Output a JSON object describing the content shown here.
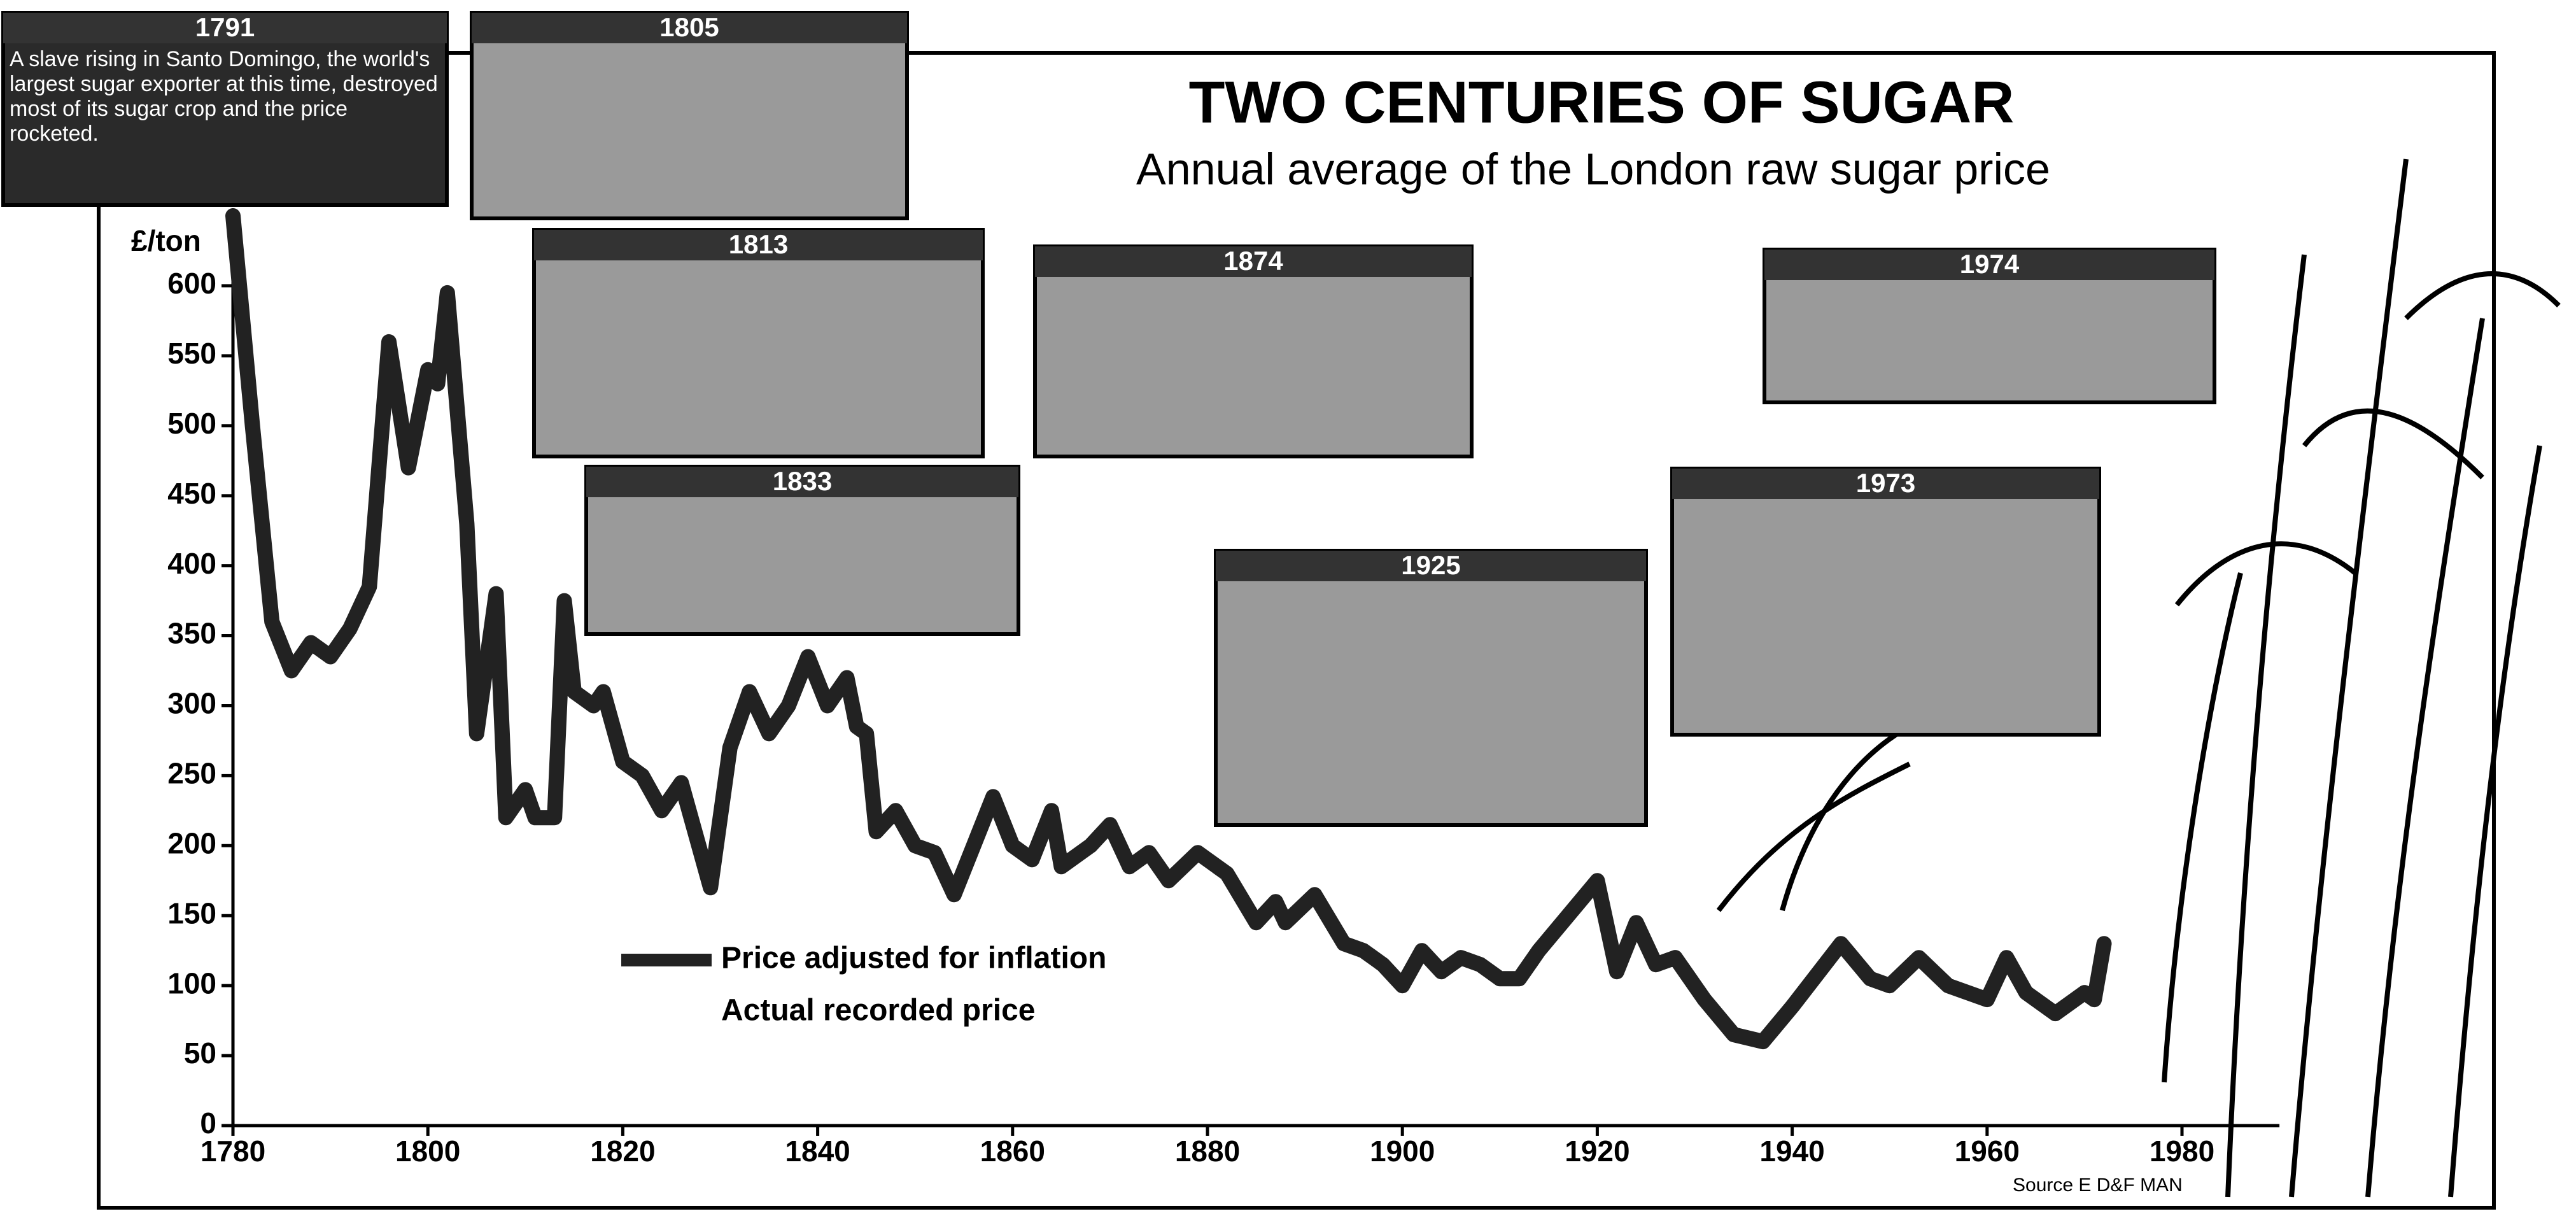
{
  "chart_data": {
    "type": "line",
    "title": "TWO CENTURIES OF SUGAR",
    "subtitle": "Annual average of the London raw sugar price",
    "y_axis_label": "£/ton",
    "source": "Source  E D&F MAN",
    "xlim": [
      1780,
      1990
    ],
    "xticks": [
      1780,
      1800,
      1820,
      1840,
      1860,
      1880,
      1900,
      1920,
      1940,
      1960,
      1980
    ],
    "ylim": [
      0,
      650
    ],
    "yticks": [
      0,
      50,
      100,
      150,
      200,
      250,
      300,
      350,
      400,
      450,
      500,
      550,
      600
    ],
    "x": [
      1780,
      1782,
      1784,
      1786,
      1788,
      1790,
      1792,
      1794,
      1796,
      1798,
      1800,
      1801,
      1802,
      1804,
      1805,
      1806,
      1807,
      1808,
      1810,
      1811,
      1813,
      1814,
      1815,
      1817,
      1818,
      1820,
      1822,
      1824,
      1826,
      1828,
      1829,
      1831,
      1833,
      1835,
      1837,
      1839,
      1841,
      1843,
      1844,
      1845,
      1846,
      1848,
      1850,
      1852,
      1854,
      1856,
      1858,
      1860,
      1862,
      1864,
      1865,
      1868,
      1870,
      1872,
      1874,
      1876,
      1879,
      1882,
      1885,
      1887,
      1888,
      1891,
      1894,
      1896,
      1898,
      1900,
      1902,
      1904,
      1906,
      1908,
      1910,
      1912,
      1914,
      1917,
      1920,
      1922,
      1924,
      1926,
      1928,
      1931,
      1934,
      1937,
      1940,
      1945,
      1948,
      1950,
      1953,
      1956,
      1960,
      1962,
      1964,
      1967,
      1970,
      1971,
      1972
    ],
    "series": [
      {
        "name": "Price adjusted for inflation",
        "color": "#222222",
        "values": [
          650,
          500,
          360,
          325,
          345,
          335,
          355,
          385,
          560,
          470,
          540,
          530,
          595,
          430,
          280,
          330,
          380,
          220,
          240,
          220,
          220,
          375,
          310,
          300,
          310,
          260,
          250,
          225,
          245,
          195,
          170,
          270,
          310,
          280,
          300,
          335,
          300,
          320,
          285,
          280,
          210,
          225,
          200,
          195,
          165,
          200,
          235,
          200,
          190,
          225,
          185,
          200,
          215,
          185,
          195,
          175,
          195,
          180,
          145,
          160,
          145,
          165,
          130,
          125,
          115,
          100,
          125,
          110,
          120,
          115,
          105,
          105,
          125,
          150,
          175,
          110,
          145,
          115,
          120,
          90,
          65,
          60,
          85,
          130,
          105,
          100,
          120,
          100,
          90,
          120,
          95,
          80,
          95,
          90,
          130
        ]
      },
      {
        "name": "Actual recorded price",
        "color": "#ffffff",
        "values": [
          null,
          null,
          null,
          null,
          null,
          null,
          null,
          null,
          null,
          null,
          null,
          null,
          null,
          null,
          null,
          null,
          null,
          null,
          null,
          null,
          null,
          null,
          null,
          null,
          null,
          null,
          null,
          null,
          null,
          null,
          null,
          null,
          null,
          null,
          null,
          null,
          null,
          null,
          null,
          null,
          null,
          null,
          null,
          null,
          null,
          null,
          null,
          null,
          null,
          null,
          null,
          null,
          null,
          null,
          null,
          null,
          null,
          null,
          null,
          null,
          null,
          null,
          null,
          null,
          null,
          null,
          null,
          null,
          null,
          null,
          null,
          null,
          null,
          null,
          null,
          null,
          null,
          null,
          null,
          null,
          null,
          null,
          null,
          null,
          null,
          null,
          null,
          null,
          null,
          null,
          null,
          null,
          null,
          null,
          null
        ]
      }
    ],
    "annotations": [
      {
        "year": "1791",
        "text": "A slave rising in Santo Domingo, the world's largest sugar exporter at this time, destroyed most of its sugar crop and the price rocketed."
      },
      {
        "year": "1805"
      },
      {
        "year": "1813"
      },
      {
        "year": "1874"
      },
      {
        "year": "1833"
      },
      {
        "year": "1925"
      },
      {
        "year": "1973"
      },
      {
        "year": "1974"
      }
    ]
  }
}
